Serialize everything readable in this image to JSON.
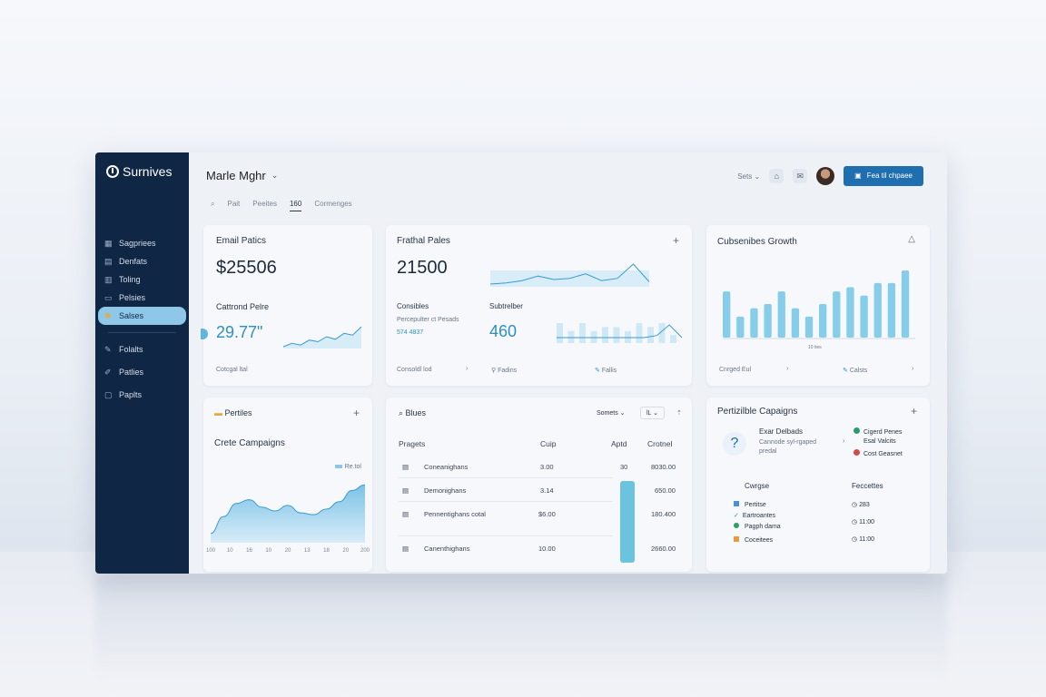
{
  "app": {
    "name": "Surnives"
  },
  "header": {
    "title": "Marle Mghr",
    "tabs": [
      {
        "label": "Pait"
      },
      {
        "label": "Peeites"
      },
      {
        "label": "160"
      },
      {
        "label": "Cormenges"
      }
    ],
    "select_label": "Sets",
    "cta_label": "Fea til chpaee"
  },
  "sidebar": {
    "items": [
      {
        "label": "Sagpriees"
      },
      {
        "label": "Denfats"
      },
      {
        "label": "Toling"
      },
      {
        "label": "Pelsies"
      },
      {
        "label": "Salses"
      },
      {
        "label": "Folalts"
      },
      {
        "label": "Patlies"
      },
      {
        "label": "Paplts"
      }
    ]
  },
  "cards": {
    "email": {
      "title": "Email Patics",
      "value": "$25506",
      "sub_title": "Cattrond Pelre",
      "sub_value": "29.77\"",
      "footer": "Cotcgal ltal",
      "spark": [
        2,
        3,
        2.5,
        4,
        3.5,
        5,
        4.2,
        6,
        5.5,
        8
      ]
    },
    "fraction": {
      "title": "Frathal Pales",
      "value": "21500",
      "left_label": "Consibles",
      "left_note": "Percepulter ct Pesads",
      "left_value": "574 4837",
      "right_label": "Subtrelber",
      "right_value": "460",
      "footer_left": "Consoldl lod",
      "footer_mid": "Fadins",
      "footer_right": "Fallis",
      "line": [
        2,
        2.2,
        2.6,
        3.4,
        2.8,
        3.0,
        3.8,
        2.6,
        3.0,
        5.5,
        2.4
      ],
      "bars": [
        5,
        3,
        5,
        3,
        4,
        4,
        3,
        5,
        4,
        5,
        2
      ]
    },
    "growth": {
      "title": "Cubsenibes Growth",
      "axis_note": "10 ties",
      "footer_left": "Cnrged Eul",
      "footer_right": "Calsts",
      "bars": [
        5.5,
        2.5,
        3.5,
        4,
        5.5,
        3.5,
        2.5,
        4,
        5.5,
        6,
        5,
        6.5,
        6.5,
        8
      ]
    },
    "perfs": {
      "title": "Pertiles",
      "chart_title": "Crete Campaigns",
      "legend": "Re.tol",
      "xticks": [
        "100",
        "10",
        "16",
        "10",
        "20",
        "13",
        "18",
        "20",
        "200"
      ],
      "area": [
        1,
        2.8,
        4.2,
        4.6,
        3.8,
        3.4,
        4.0,
        3.2,
        3.0,
        3.6,
        4.4,
        5.6,
        6.2
      ]
    },
    "blues": {
      "title": "Blues",
      "select": "Somets",
      "filter": "lL",
      "columns": [
        "Pragets",
        "Cuip",
        "Aptd",
        "Crotnel"
      ],
      "rows": [
        {
          "name": "Coneanighans",
          "cuip": "3.00",
          "aptd": "30",
          "crotnel": "8030.00"
        },
        {
          "name": "Demonighans",
          "cuip": "3.14",
          "aptd": "",
          "crotnel": "650.00"
        },
        {
          "name": "Pennentighans cotal",
          "cuip": "$6.00",
          "aptd": "",
          "crotnel": "180.400"
        },
        {
          "name": "Canenthighans",
          "cuip": "10.00",
          "aptd": "",
          "crotnel": "2660.00"
        }
      ]
    },
    "campaigns": {
      "title": "Pertizilble Capaigns",
      "help_title": "Exar Delbads",
      "help_sub": "Cannode syl-rgaped",
      "help_note": "predal",
      "status": [
        {
          "label": "Cigerd Penes",
          "color": "#2e9b6a"
        },
        {
          "label": "Esal Valcits",
          "color": ""
        },
        {
          "label": "Cost Geasnet",
          "color": "#d24a4a"
        }
      ],
      "left_head": "Cwrgse",
      "right_head": "Feccettes",
      "items": [
        {
          "label": "Pertitse",
          "time": "283",
          "color": "#4a90d9"
        },
        {
          "label": "Eartroantes",
          "time": "11:00",
          "color": "#3d7fc4"
        },
        {
          "label": "Pagph dama",
          "time": "11:00",
          "color": "#2e9b6a"
        },
        {
          "label": "Coceitees",
          "time": "",
          "color": "#e89a3c"
        }
      ]
    }
  }
}
